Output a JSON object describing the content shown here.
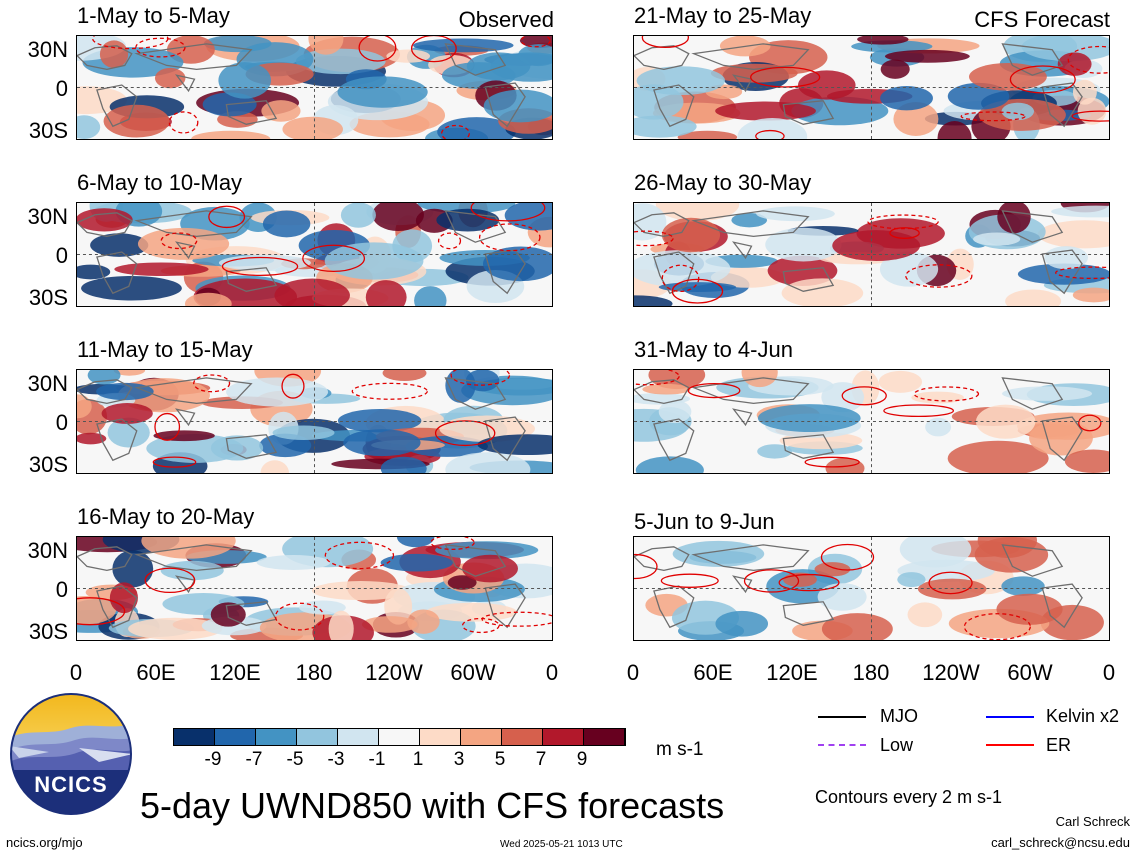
{
  "chart_data": {
    "type": "heatmap",
    "title": "5-day UWND850 with CFS forecasts",
    "units": "m s-1",
    "contour_note": "Contours every 2 m s-1",
    "colorbar_ticks": [
      "-9",
      "-7",
      "-5",
      "-3",
      "-1",
      "1",
      "3",
      "5",
      "7",
      "9"
    ],
    "colorbar_colors": [
      "#08306b",
      "#2166ac",
      "#4393c3",
      "#92c5de",
      "#d1e5f0",
      "#f7f7f7",
      "#fddbc7",
      "#f4a582",
      "#d6604d",
      "#b2182b",
      "#67001f"
    ],
    "lat_ticks": [
      "30N",
      "0",
      "30S"
    ],
    "lon_ticks": [
      "0",
      "60E",
      "120E",
      "180",
      "120W",
      "60W",
      "0"
    ],
    "observed_label": "Observed",
    "forecast_label": "CFS Forecast",
    "observed_panels": [
      "1-May to 5-May",
      "6-May to 10-May",
      "11-May to 15-May",
      "16-May to 20-May"
    ],
    "forecast_panels": [
      "21-May to 25-May",
      "26-May to 30-May",
      "31-May to 4-Jun",
      "5-Jun to 9-Jun"
    ],
    "legend": [
      {
        "name": "MJO",
        "color": "#000000"
      },
      {
        "name": "Kelvin x2",
        "color": "#0000ff"
      },
      {
        "name": "Low",
        "color": "#a040f0"
      },
      {
        "name": "ER",
        "color": "#ff0000"
      }
    ]
  },
  "branding": {
    "logo_text": "NCICS",
    "site": "ncics.org/mjo",
    "timestamp": "Wed 2025-05-21 1013 UTC",
    "author": "Carl Schreck",
    "email": "carl_schreck@ncsu.edu"
  }
}
